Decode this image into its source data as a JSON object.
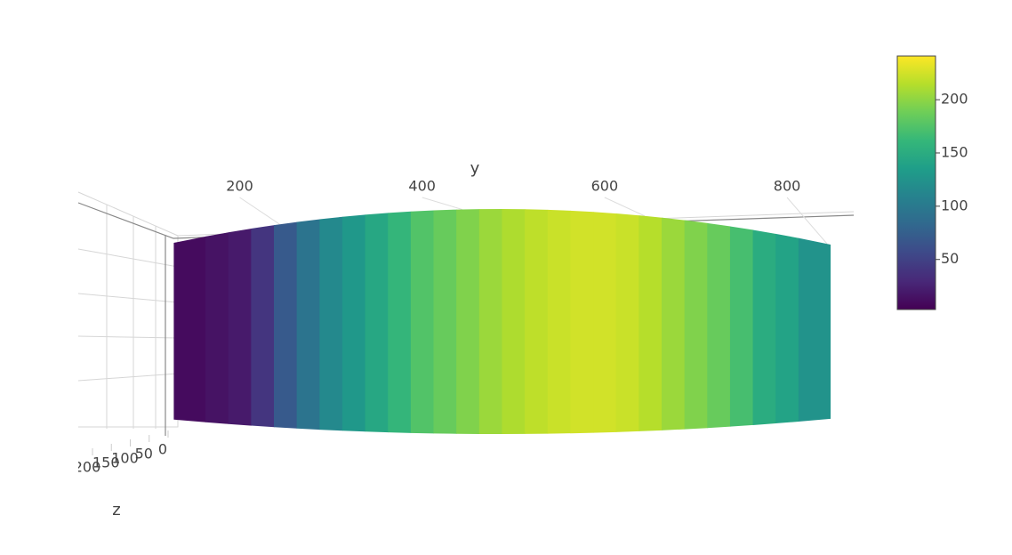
{
  "chart_data": {
    "type": "surface",
    "x_label": "y",
    "z_label": "z",
    "x": [
      150,
      175,
      200,
      225,
      250,
      275,
      300,
      325,
      350,
      375,
      400,
      425,
      450,
      475,
      500,
      525,
      550,
      575,
      600,
      625,
      650,
      675,
      700,
      725,
      750,
      775,
      800,
      825
    ],
    "values": [
      10,
      15,
      20,
      40,
      70,
      95,
      115,
      130,
      145,
      160,
      175,
      185,
      195,
      205,
      212,
      218,
      222,
      225,
      225,
      222,
      215,
      205,
      195,
      185,
      170,
      150,
      140,
      125
    ],
    "xlim": [
      25,
      875
    ],
    "xticks": [
      200,
      400,
      600,
      800
    ],
    "zlim": [
      0,
      200
    ],
    "zticks": [
      200,
      150,
      100,
      50,
      0
    ],
    "clim": [
      3,
      241
    ],
    "cticks": [
      50,
      100,
      150,
      200
    ],
    "colorscale": [
      "#440154",
      "#482878",
      "#3e4989",
      "#31688e",
      "#26828e",
      "#1f9e89",
      "#35b779",
      "#6ece58",
      "#b5de2b",
      "#fde725"
    ]
  }
}
